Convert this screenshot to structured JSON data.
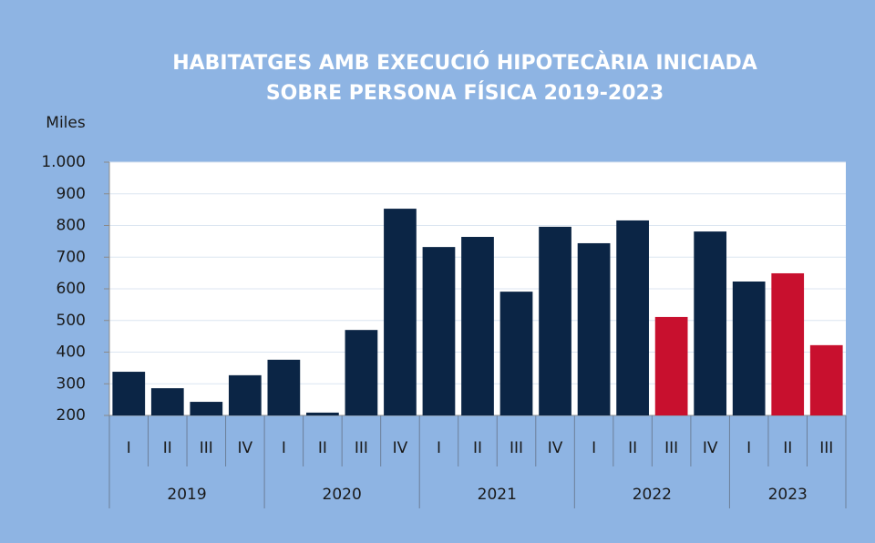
{
  "chart_data": {
    "type": "bar",
    "title": [
      "HABITATGES AMB EXECUCIÓ HIPOTECÀRIA INICIADA",
      "SOBRE PERSONA FÍSICA 2019-2023"
    ],
    "y_label": "Miles",
    "categories": [
      "I",
      "II",
      "III",
      "IV",
      "I",
      "II",
      "III",
      "IV",
      "I",
      "II",
      "III",
      "IV",
      "I",
      "II",
      "III",
      "IV",
      "I",
      "II",
      "III"
    ],
    "groups": [
      {
        "name": "2019",
        "size": 4
      },
      {
        "name": "2020",
        "size": 4
      },
      {
        "name": "2021",
        "size": 4
      },
      {
        "name": "2022",
        "size": 4
      },
      {
        "name": "2023",
        "size": 3
      }
    ],
    "values": [
      338,
      286,
      243,
      327,
      376,
      209,
      470,
      853,
      732,
      764,
      591,
      796,
      744,
      816,
      511,
      781,
      623,
      649,
      422
    ],
    "colors": [
      "#0b2545",
      "#0b2545",
      "#0b2545",
      "#0b2545",
      "#0b2545",
      "#0b2545",
      "#0b2545",
      "#0b2545",
      "#0b2545",
      "#0b2545",
      "#0b2545",
      "#0b2545",
      "#0b2545",
      "#0b2545",
      "#c8102e",
      "#0b2545",
      "#0b2545",
      "#c8102e",
      "#c8102e"
    ],
    "ylim": [
      200,
      1000
    ],
    "yticks": [
      200,
      300,
      400,
      500,
      600,
      700,
      800,
      900,
      {
        "value": 1000,
        "label": "1.000"
      }
    ],
    "grid": true
  }
}
